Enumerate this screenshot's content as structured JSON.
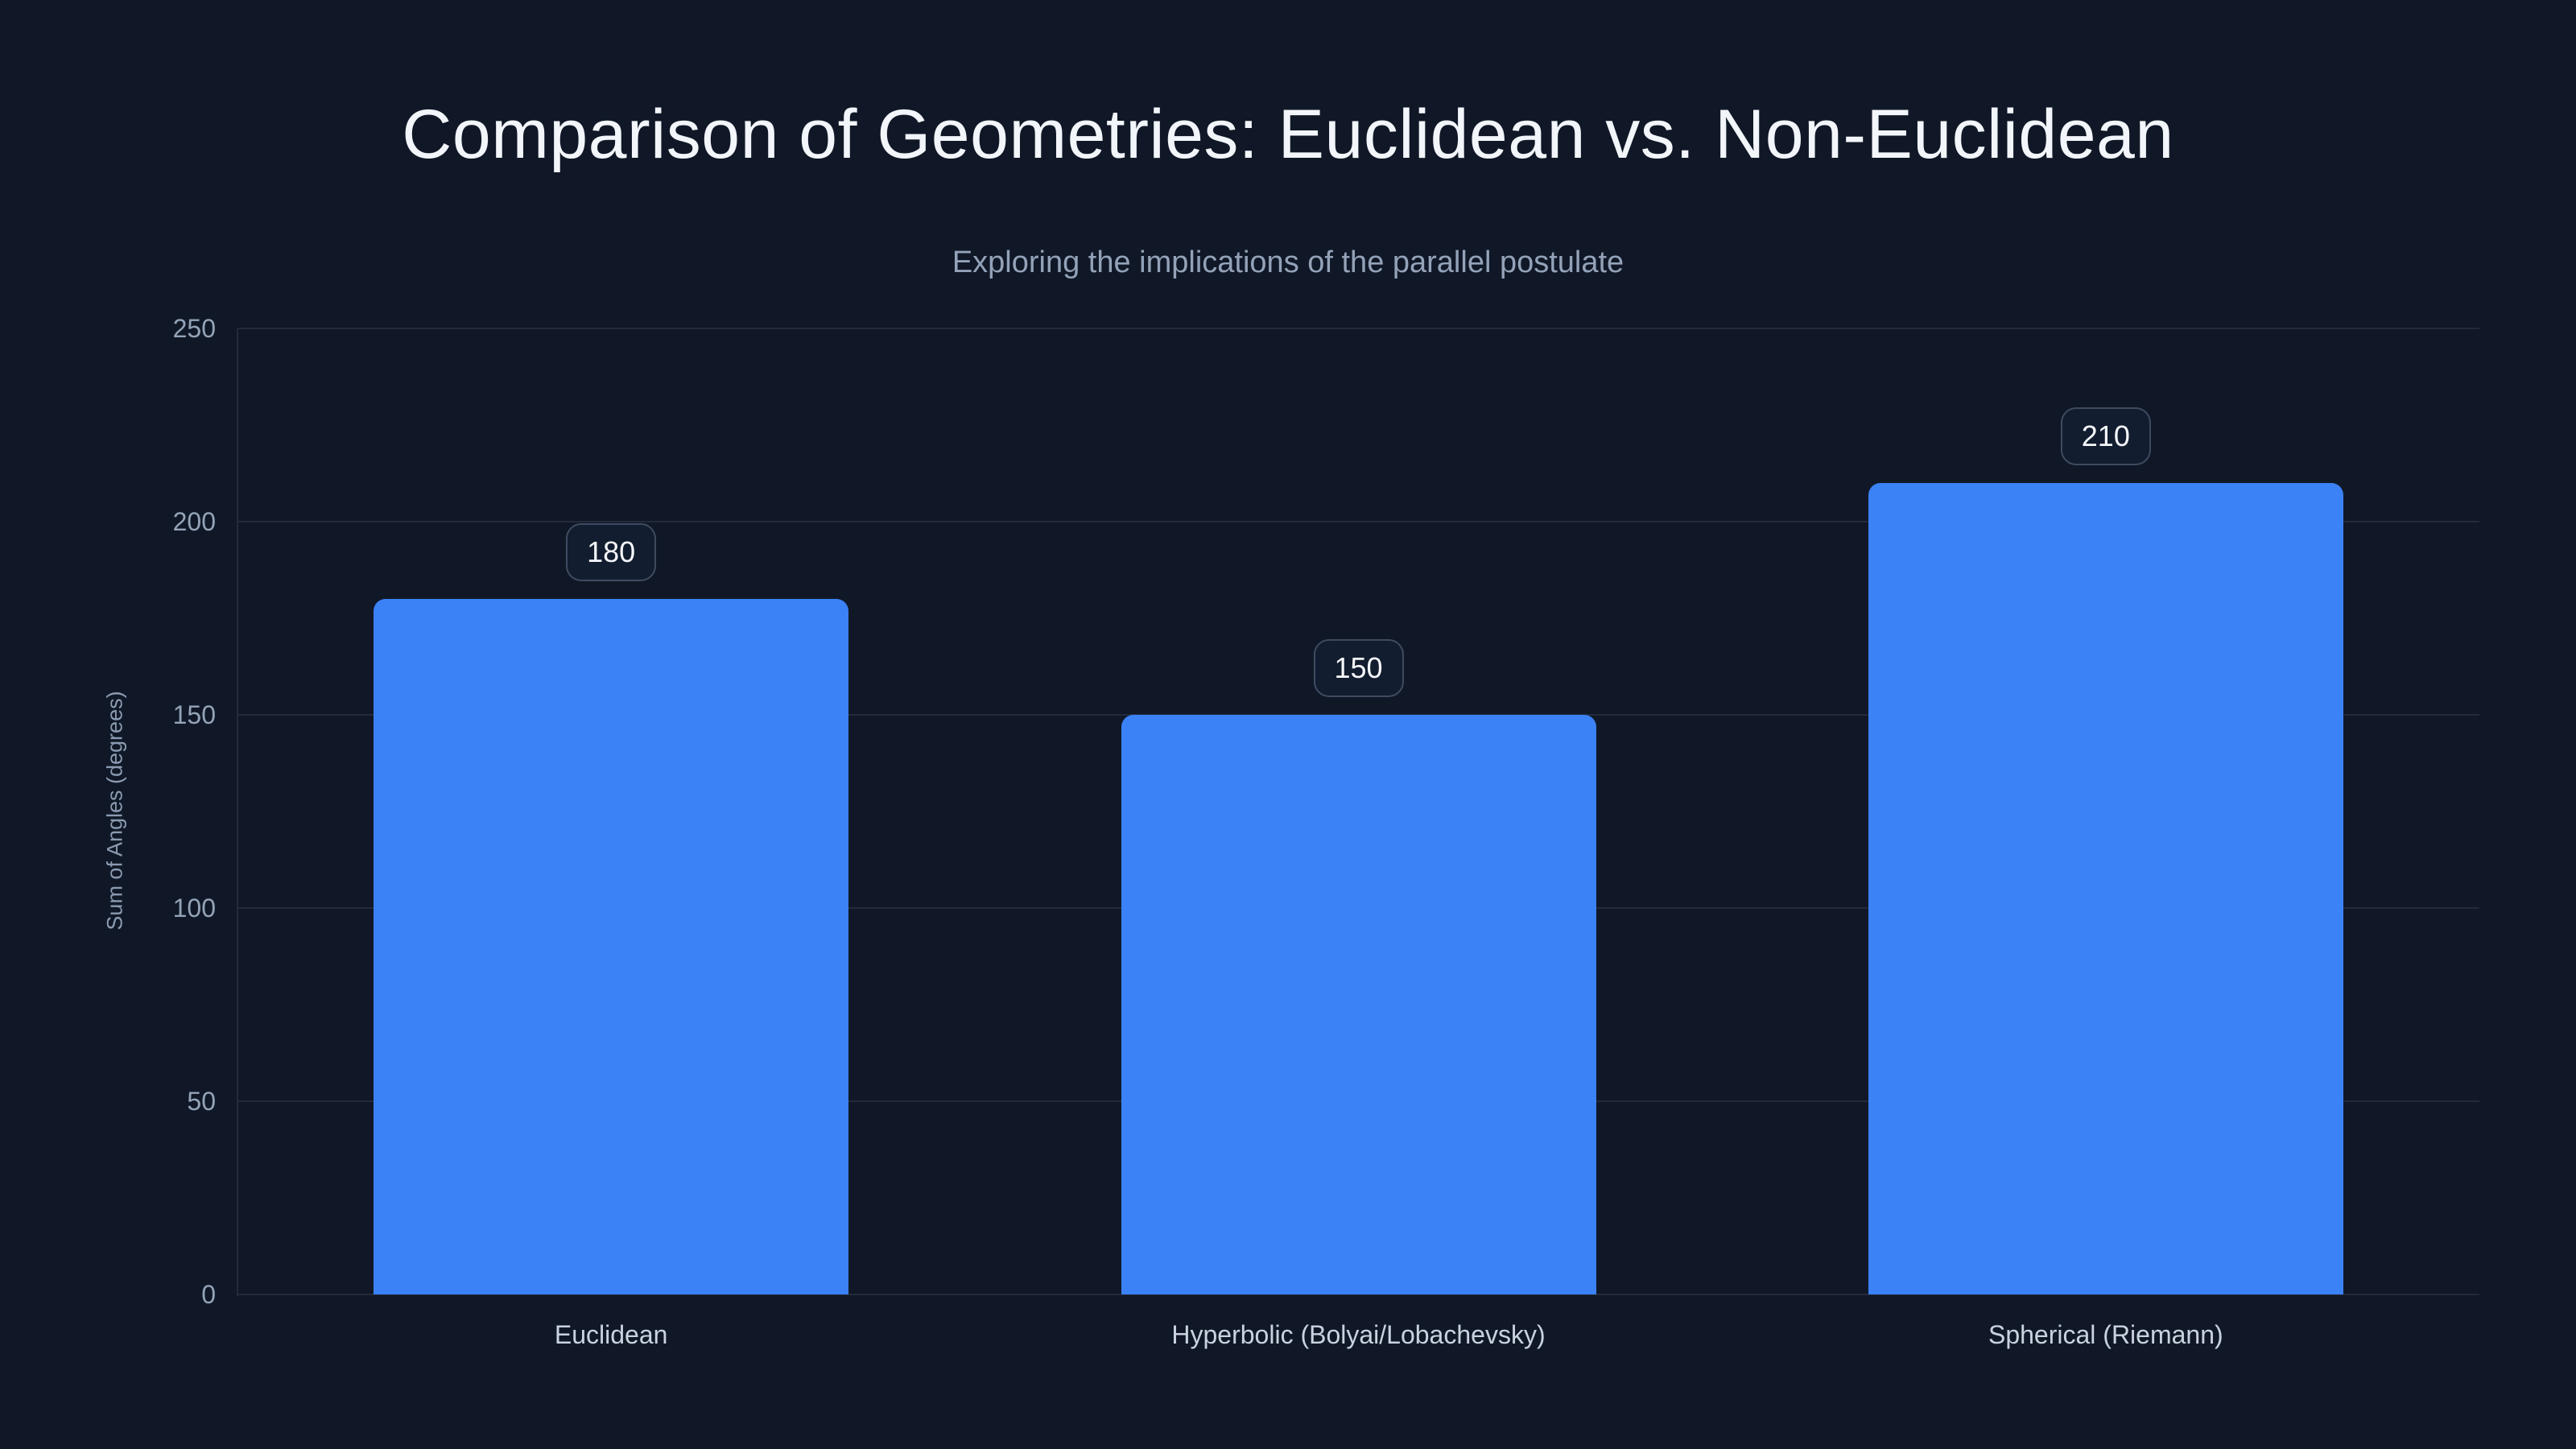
{
  "theme": {
    "background": "#101827",
    "title_color": "#f2f5f9",
    "subtitle_color": "#93a2b8",
    "axis_title_color": "#8b9ab0",
    "tick_color": "#94a3b8",
    "x_label_color": "#c9d2de",
    "grid_color": "#222a3c",
    "axis_line_color": "#222a3c",
    "bar_color": "#3b82f6",
    "badge_border_color": "#3f4b60",
    "badge_bg": "#121d2f",
    "badge_text_color": "#f5f7fa"
  },
  "chart_data": {
    "type": "bar",
    "title": "Comparison of Geometries: Euclidean vs. Non-Euclidean",
    "subtitle": "Exploring the implications of the parallel postulate",
    "ylabel": "Sum of Angles (degrees)",
    "xlabel": "",
    "categories": [
      "Euclidean",
      "Hyperbolic (Bolyai/Lobachevsky)",
      "Spherical (Riemann)"
    ],
    "values": [
      180,
      150,
      210
    ],
    "value_labels": [
      "180",
      "150",
      "210"
    ],
    "yticks": [
      0,
      50,
      100,
      150,
      200,
      250
    ],
    "ylim": [
      0,
      250
    ],
    "grid": true,
    "legend": false
  }
}
